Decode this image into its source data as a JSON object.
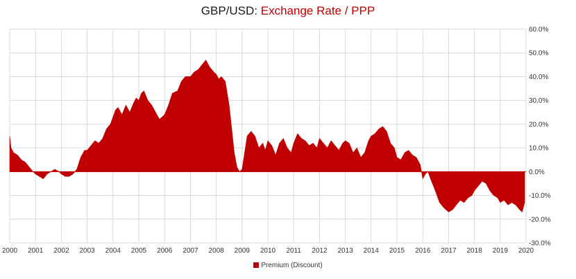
{
  "chart_data": {
    "type": "area",
    "title": {
      "prefix": "GBP/USD:",
      "main": "Exchange Rate / PPP"
    },
    "xlabel": "",
    "ylabel": "",
    "xlim": [
      2000,
      2020
    ],
    "ylim": [
      -30,
      60
    ],
    "y_ticks": [
      "60.0%",
      "50.0%",
      "40.0%",
      "30.0%",
      "20.0%",
      "10.0%",
      "0.0%",
      "-10.0%",
      "-20.0%",
      "-30.0%"
    ],
    "y_tick_values": [
      60,
      50,
      40,
      30,
      20,
      10,
      0,
      -10,
      -20,
      -30
    ],
    "x_ticks": [
      "2000",
      "2001",
      "2002",
      "2003",
      "2004",
      "2005",
      "2006",
      "2007",
      "2008",
      "2009",
      "2010",
      "2011",
      "2012",
      "2013",
      "2014",
      "2015",
      "2016",
      "2017",
      "2018",
      "2019",
      "2020"
    ],
    "grid": true,
    "legend_position": "bottom-center",
    "series": [
      {
        "name": "Premium (Discount)",
        "color": "#c00000",
        "x": [
          2000.0,
          2000.05,
          2000.15,
          2000.3,
          2000.45,
          2000.6,
          2000.75,
          2000.9,
          2001.0,
          2001.15,
          2001.3,
          2001.45,
          2001.6,
          2001.75,
          2001.9,
          2002.0,
          2002.15,
          2002.3,
          2002.45,
          2002.6,
          2002.75,
          2002.9,
          2003.0,
          2003.15,
          2003.3,
          2003.45,
          2003.6,
          2003.75,
          2003.9,
          2004.0,
          2004.1,
          2004.2,
          2004.35,
          2004.5,
          2004.65,
          2004.8,
          2004.9,
          2005.0,
          2005.1,
          2005.2,
          2005.35,
          2005.5,
          2005.65,
          2005.8,
          2006.0,
          2006.15,
          2006.3,
          2006.5,
          2006.65,
          2006.8,
          2007.0,
          2007.15,
          2007.3,
          2007.45,
          2007.6,
          2007.75,
          2007.9,
          2008.0,
          2008.1,
          2008.2,
          2008.35,
          2008.5,
          2008.6,
          2008.7,
          2008.8,
          2008.9,
          2009.0,
          2009.1,
          2009.2,
          2009.35,
          2009.5,
          2009.65,
          2009.8,
          2009.9,
          2010.0,
          2010.15,
          2010.3,
          2010.45,
          2010.6,
          2010.75,
          2010.9,
          2011.0,
          2011.15,
          2011.3,
          2011.45,
          2011.6,
          2011.75,
          2011.9,
          2012.0,
          2012.15,
          2012.3,
          2012.45,
          2012.6,
          2012.75,
          2012.9,
          2013.0,
          2013.15,
          2013.3,
          2013.45,
          2013.6,
          2013.75,
          2013.9,
          2014.0,
          2014.15,
          2014.3,
          2014.45,
          2014.6,
          2014.75,
          2014.9,
          2015.0,
          2015.15,
          2015.3,
          2015.45,
          2015.6,
          2015.75,
          2015.9,
          2016.0,
          2016.1,
          2016.2,
          2016.3,
          2016.45,
          2016.55,
          2016.65,
          2016.8,
          2016.9,
          2017.0,
          2017.15,
          2017.3,
          2017.45,
          2017.6,
          2017.75,
          2017.9,
          2018.0,
          2018.15,
          2018.3,
          2018.45,
          2018.6,
          2018.75,
          2018.9,
          2019.0,
          2019.15,
          2019.3,
          2019.45,
          2019.6,
          2019.75,
          2019.85,
          2019.95
        ],
        "values": [
          15,
          10,
          8,
          7,
          5,
          4,
          2,
          0,
          -1,
          -2,
          -3,
          -1,
          0,
          1,
          0,
          -1,
          -2,
          -2,
          -1,
          1,
          6,
          9,
          9,
          11,
          13,
          12,
          14,
          18,
          20,
          23,
          26,
          27,
          24,
          28,
          25,
          29,
          31,
          30,
          33,
          34,
          30,
          28,
          25,
          22,
          24,
          28,
          33,
          34,
          38,
          40,
          40,
          42,
          43,
          45,
          47,
          44,
          42,
          41,
          39,
          40,
          38,
          28,
          18,
          8,
          2,
          0,
          1,
          8,
          15,
          17,
          15,
          10,
          12,
          9,
          13,
          11,
          7,
          12,
          14,
          10,
          8,
          12,
          16,
          14,
          13,
          11,
          12,
          10,
          14,
          12,
          10,
          13,
          11,
          9,
          12,
          13,
          12,
          8,
          10,
          6,
          8,
          13,
          15,
          16,
          18,
          19,
          17,
          12,
          10,
          6,
          5,
          8,
          9,
          7,
          6,
          3,
          -3,
          -1,
          0,
          -3,
          -7,
          -10,
          -13,
          -15,
          -16,
          -17,
          -16,
          -14,
          -12,
          -13,
          -11,
          -10,
          -8,
          -6,
          -4,
          -5,
          -8,
          -10,
          -11,
          -13,
          -12,
          -14,
          -13,
          -14,
          -16,
          -17,
          -13
        ]
      }
    ]
  }
}
